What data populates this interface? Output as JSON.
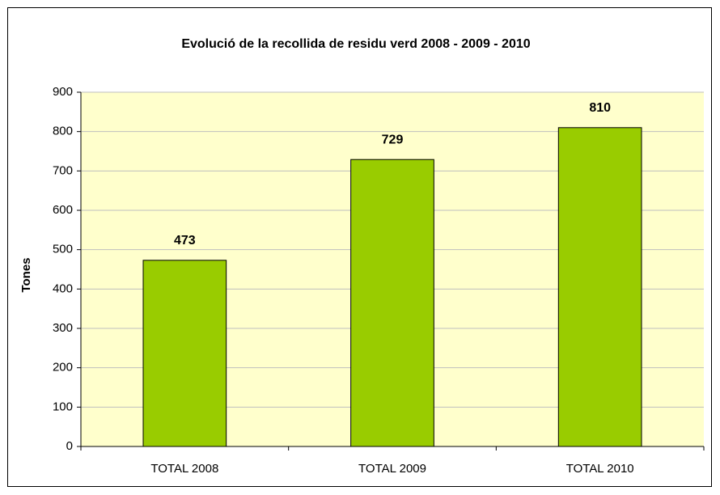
{
  "chart_data": {
    "type": "bar",
    "title": "Evolució de la recollida de residu verd 2008 - 2009 - 2010",
    "y_label": "Tones",
    "categories": [
      "TOTAL 2008",
      "TOTAL 2009",
      "TOTAL 2010"
    ],
    "values": [
      473,
      729,
      810
    ],
    "color": "#99cc00",
    "ylim": [
      0,
      900
    ],
    "yticks": [
      0,
      100,
      200,
      300,
      400,
      500,
      600,
      700,
      800,
      900
    ],
    "grid": true
  }
}
